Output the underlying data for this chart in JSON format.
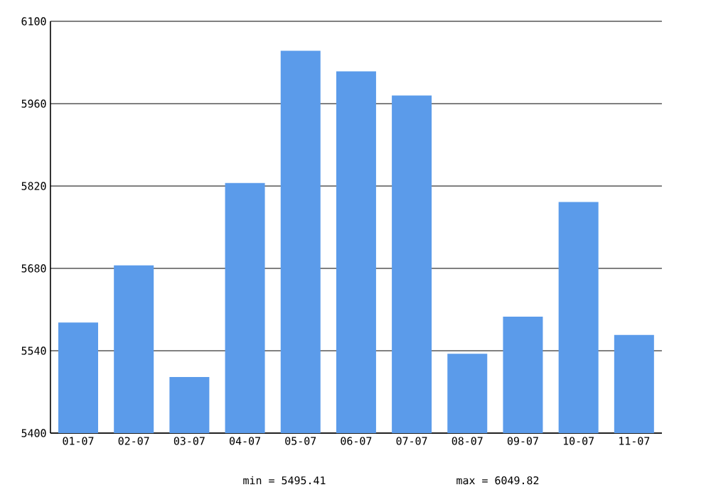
{
  "chart_data": {
    "type": "bar",
    "categories": [
      "01-07",
      "02-07",
      "03-07",
      "04-07",
      "05-07",
      "06-07",
      "07-07",
      "08-07",
      "09-07",
      "10-07",
      "11-07"
    ],
    "values": [
      5588,
      5685,
      5495.41,
      5825,
      6049.82,
      6015,
      5974,
      5535,
      5598,
      5793,
      5567
    ],
    "color": "#5b9bea",
    "ylim": [
      5400,
      6100
    ],
    "yticks": [
      5400,
      5540,
      5680,
      5820,
      5960,
      6100
    ],
    "grid": "y",
    "annotations": [
      "min = 5495.41",
      "max = 6049.82"
    ]
  }
}
